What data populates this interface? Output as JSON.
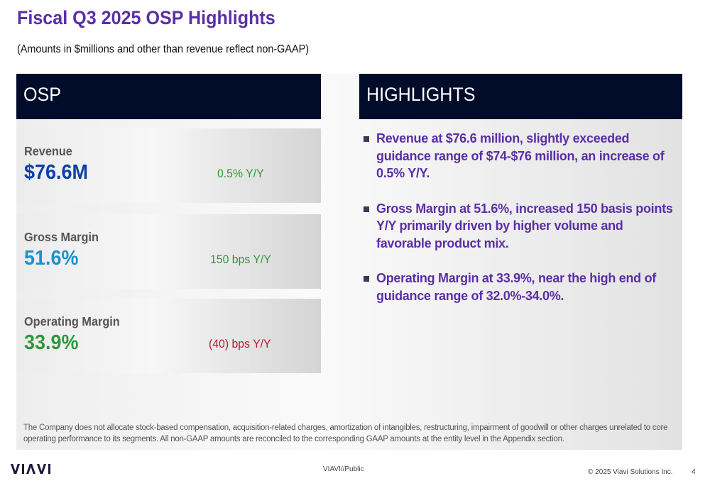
{
  "slide": {
    "title": "Fiscal Q3 2025 OSP Highlights",
    "subtitle": "(Amounts in $millions and other than revenue reflect non-GAAP)"
  },
  "osp": {
    "header": "OSP",
    "metrics": [
      {
        "label": "Revenue",
        "value": "$76.6M",
        "change": "0.5% Y/Y",
        "value_color": "#0b3fa8",
        "change_color": "#2e9a3a"
      },
      {
        "label": "Gross Margin",
        "value": "51.6%",
        "change": "150 bps Y/Y",
        "value_color": "#1a93c9",
        "change_color": "#2e9a3a"
      },
      {
        "label": "Operating Margin",
        "value": "33.9%",
        "change": "(40) bps Y/Y",
        "value_color": "#2e9a3a",
        "change_color": "#b11b3a"
      }
    ]
  },
  "highlights": {
    "header": "HIGHLIGHTS",
    "items": [
      "Revenue at $76.6 million, slightly exceeded guidance range of $74-$76 million, an increase of 0.5% Y/Y.",
      "Gross Margin at 51.6%, increased 150 basis points Y/Y primarily driven by higher volume and favorable product mix.",
      "Operating Margin at 33.9%, near the high end of guidance range of 32.0%-34.0%."
    ]
  },
  "footnote": "The Company does not allocate stock-based compensation, acquisition-related charges, amortization of intangibles, restructuring, impairment of goodwill or other charges unrelated to core operating performance to its segments. All non-GAAP amounts are reconciled to the corresponding GAAP amounts at the entity level in the Appendix section.",
  "footer": {
    "logo_text": "VIAVI",
    "classification": "VIAVI//Public",
    "copyright": "© 2025 Viavi Solutions Inc.",
    "page_number": "4"
  },
  "colors": {
    "title": "#5b2fa6",
    "header_bg": "#000c2a",
    "bullet_text": "#5b2fa6"
  }
}
